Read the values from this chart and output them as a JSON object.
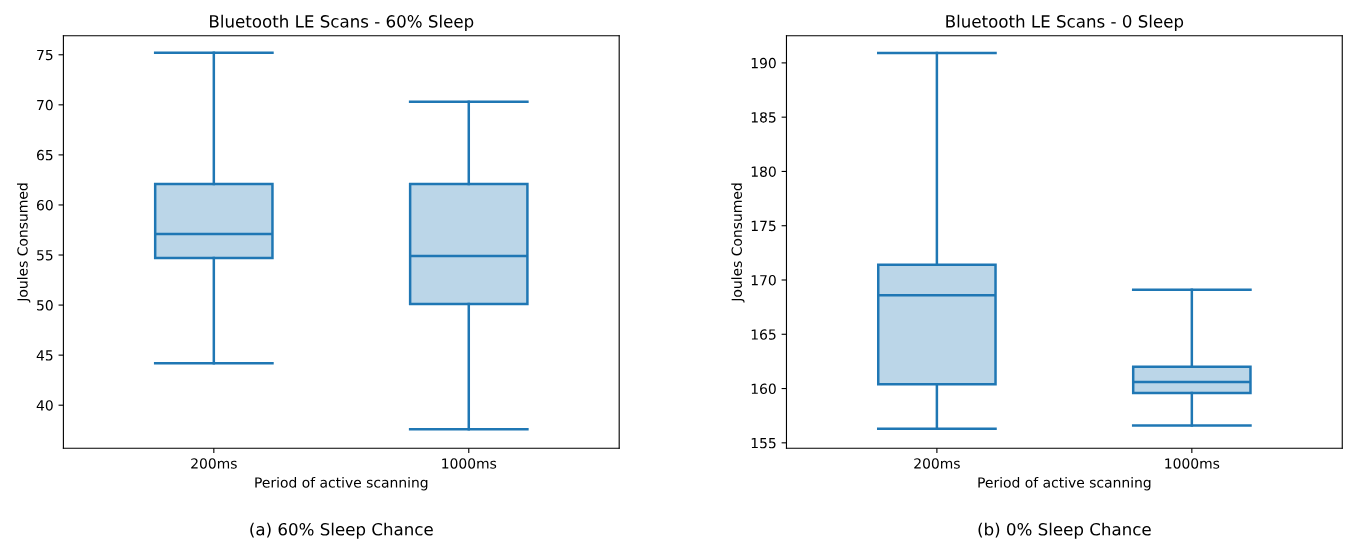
{
  "chart_data": [
    {
      "type": "box",
      "title": "Bluetooth LE Scans - 60% Sleep",
      "xlabel": "Period of active scanning",
      "ylabel": "Joules Consumed",
      "categories": [
        "200ms",
        "1000ms"
      ],
      "color": "#1f77b4",
      "boxes": [
        {
          "low": 44.2,
          "q1": 54.7,
          "median": 57.1,
          "q3": 62.1,
          "high": 75.2
        },
        {
          "low": 37.6,
          "q1": 50.1,
          "median": 54.9,
          "q3": 62.1,
          "high": 70.3
        }
      ],
      "ylim": [
        35.7,
        76.9
      ],
      "yticks": [
        40,
        45,
        50,
        55,
        60,
        65,
        70,
        75
      ],
      "annotations": [
        "(a) 60% Sleep Chance"
      ]
    },
    {
      "type": "box",
      "title": "Bluetooth LE Scans - 0 Sleep",
      "xlabel": "Period of active scanning",
      "ylabel": "Joules Consumed",
      "categories": [
        "200ms",
        "1000ms"
      ],
      "color": "#1f77b4",
      "boxes": [
        {
          "low": 156.3,
          "q1": 160.4,
          "median": 168.6,
          "q3": 171.4,
          "high": 190.9
        },
        {
          "low": 156.6,
          "q1": 159.6,
          "median": 160.6,
          "q3": 162.0,
          "high": 169.1
        }
      ],
      "ylim": [
        154.5,
        192.5
      ],
      "yticks": [
        155,
        160,
        165,
        170,
        175,
        180,
        185,
        190
      ],
      "annotations": [
        "(b) 0% Sleep Chance"
      ]
    }
  ]
}
